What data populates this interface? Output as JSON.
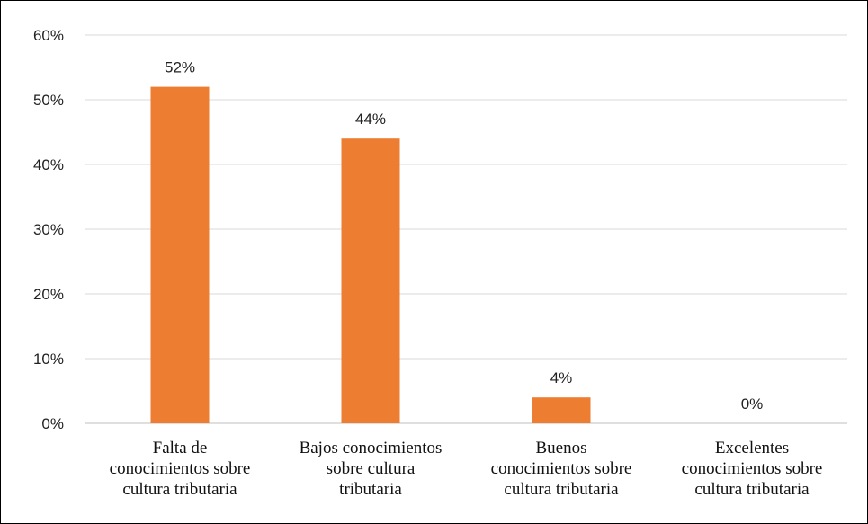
{
  "chart_data": {
    "type": "bar",
    "categories": [
      "Falta de conocimientos sobre cultura tributaria",
      "Bajos conocimientos sobre cultura tributaria",
      "Buenos conocimientos sobre cultura tributaria",
      "Excelentes conocimientos sobre cultura tributaria"
    ],
    "category_lines": [
      [
        "Falta de",
        "conocimientos sobre",
        "cultura tributaria"
      ],
      [
        "Bajos conocimientos",
        "sobre cultura",
        "tributaria"
      ],
      [
        "Buenos",
        "conocimientos sobre",
        "cultura tributaria"
      ],
      [
        "Excelentes",
        "conocimientos sobre",
        "cultura tributaria"
      ]
    ],
    "values": [
      52,
      44,
      4,
      0
    ],
    "data_labels": [
      "52%",
      "44%",
      "4%",
      "0%"
    ],
    "ylim": [
      0,
      60
    ],
    "yticks": [
      0,
      10,
      20,
      30,
      40,
      50,
      60
    ],
    "ytick_labels": [
      "0%",
      "10%",
      "20%",
      "30%",
      "40%",
      "50%",
      "60%"
    ],
    "grid": true,
    "colors": {
      "bar": "#ED7D31",
      "grid": "#D9D9D9",
      "axis": "#BFBFBF"
    }
  }
}
